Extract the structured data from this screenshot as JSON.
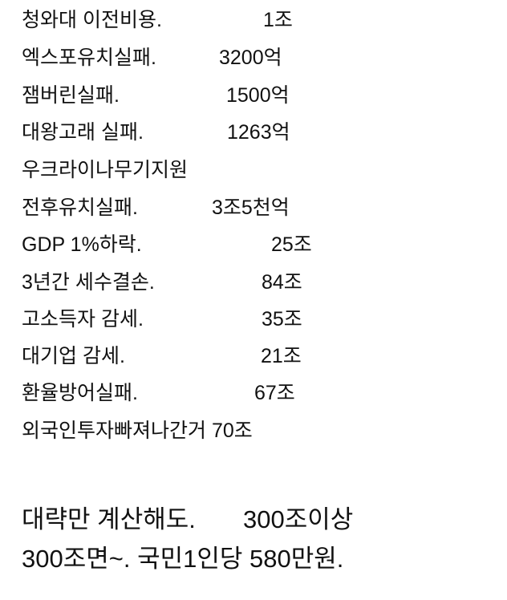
{
  "items": [
    {
      "label": "청와대 이전비용.",
      "value": "1조"
    },
    {
      "label": "엑스포유치실패.",
      "value": "3200억"
    },
    {
      "label": "잼버린실패.",
      "value": "1500억"
    },
    {
      "label": "대왕고래 실패.",
      "value": "1263억"
    },
    {
      "label": "우크라이나무기지원",
      "value": ""
    },
    {
      "label": "전후유치실패.",
      "value": "3조5천억"
    },
    {
      "label": "GDP 1%하락.",
      "value": "25조"
    },
    {
      "label": "3년간 세수결손.",
      "value": "84조"
    },
    {
      "label": "고소득자 감세.",
      "value": "35조"
    },
    {
      "label": "대기업 감세.",
      "value": "21조"
    },
    {
      "label": "환율방어실패.",
      "value": "67조"
    },
    {
      "label": "외국인투자빠져나간거 70조",
      "value": ""
    }
  ],
  "summary": {
    "line1_text": "대략만 계산해도.",
    "line1_value": "300조이상",
    "line2": "300조면~. 국민1인당 580만원."
  }
}
